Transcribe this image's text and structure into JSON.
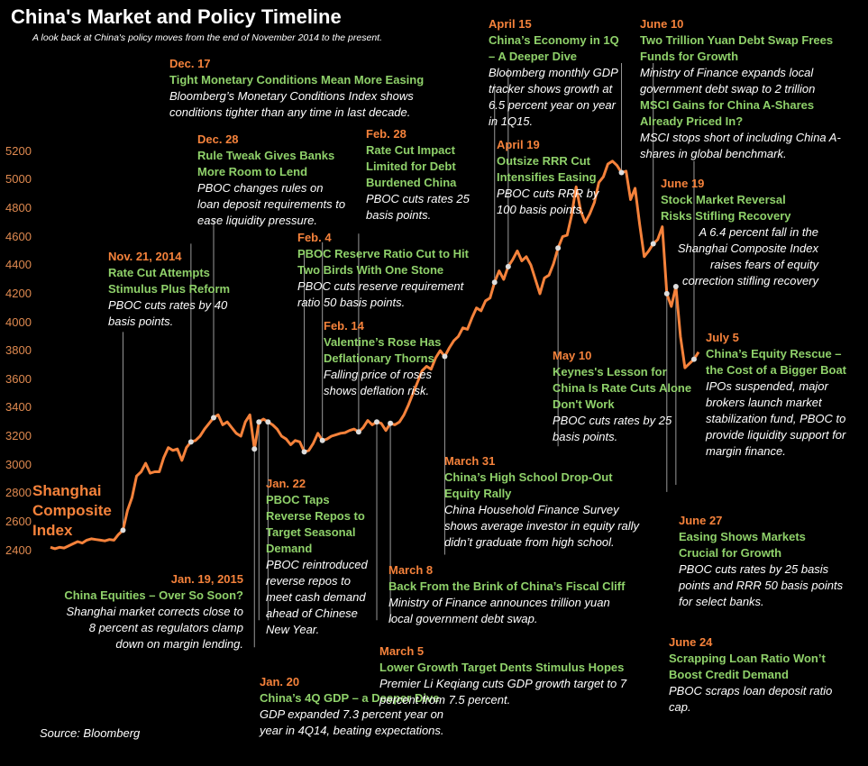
{
  "title": "China's Market and Policy Timeline",
  "subtitle": "A look back at China's policy moves from the end of November 2014 to the present.",
  "source": "Source: Bloomberg",
  "colors": {
    "line": "#f5823b",
    "date": "#f5823b",
    "headline": "#8fd16a",
    "text": "#ffffff",
    "background": "#000000",
    "leader": "#999999"
  },
  "chart_data": {
    "type": "line",
    "series": [
      {
        "name": "Shanghai Composite Index",
        "values": [
          2420,
          2410,
          2420,
          2415,
          2430,
          2445,
          2460,
          2450,
          2470,
          2480,
          2475,
          2470,
          2465,
          2475,
          2470,
          2510,
          2540,
          2680,
          2770,
          2920,
          2950,
          3010,
          2940,
          2950,
          2950,
          3050,
          3120,
          3100,
          3110,
          3030,
          3120,
          3160,
          3170,
          3200,
          3250,
          3290,
          3330,
          3350,
          3280,
          3300,
          3260,
          3220,
          3200,
          3300,
          3350,
          3110,
          3300,
          3320,
          3300,
          3280,
          3250,
          3200,
          3180,
          3140,
          3170,
          3160,
          3090,
          3100,
          3150,
          3220,
          3170,
          3180,
          3200,
          3210,
          3220,
          3225,
          3240,
          3250,
          3230,
          3260,
          3310,
          3280,
          3300,
          3290,
          3240,
          3290,
          3280,
          3300,
          3350,
          3420,
          3500,
          3580,
          3660,
          3690,
          3670,
          3750,
          3800,
          3760,
          3820,
          3870,
          3900,
          3960,
          3950,
          4030,
          4100,
          4080,
          4150,
          4170,
          4280,
          4360,
          4300,
          4390,
          4440,
          4500,
          4430,
          4460,
          4400,
          4300,
          4200,
          4310,
          4330,
          4410,
          4520,
          4600,
          4610,
          4750,
          4950,
          4780,
          4700,
          4760,
          4840,
          4980,
          5020,
          5110,
          5130,
          5100,
          5050,
          5060,
          4860,
          4940,
          4690,
          4460,
          4500,
          4550,
          4580,
          4670,
          4200,
          4110,
          4250,
          3900,
          3680,
          3710,
          3740,
          3790
        ]
      }
    ],
    "ylim": [
      2340,
      5230
    ],
    "yticks": [
      2400,
      2600,
      2800,
      3000,
      3200,
      3400,
      3600,
      3800,
      4000,
      4200,
      4400,
      4600,
      4800,
      5000,
      5200
    ],
    "grid": false,
    "legend": "none",
    "markers": [
      {
        "date": "Nov. 21, 2014",
        "index": 16,
        "anchor": "top"
      },
      {
        "date": "Dec. 17",
        "index": 31,
        "anchor": "top"
      },
      {
        "date": "Dec. 28",
        "index": 36,
        "anchor": "top"
      },
      {
        "date": "Jan. 19, 2015",
        "index": 45,
        "anchor": "bottom"
      },
      {
        "date": "Jan. 20",
        "index": 46,
        "anchor": "bottom"
      },
      {
        "date": "Jan. 22",
        "index": 48,
        "anchor": "bottom"
      },
      {
        "date": "Feb. 4",
        "index": 56,
        "anchor": "top"
      },
      {
        "date": "Feb. 14",
        "index": 60,
        "anchor": "top"
      },
      {
        "date": "Feb. 28",
        "index": 68,
        "anchor": "top"
      },
      {
        "date": "March 5",
        "index": 72,
        "anchor": "bottom"
      },
      {
        "date": "March 8",
        "index": 75,
        "anchor": "bottom"
      },
      {
        "date": "March 31",
        "index": 87,
        "anchor": "bottom"
      },
      {
        "date": "April 15",
        "index": 98,
        "anchor": "top"
      },
      {
        "date": "April 19",
        "index": 101,
        "anchor": "top"
      },
      {
        "date": "May 10",
        "index": 112,
        "anchor": "bottom"
      },
      {
        "date": "June 10",
        "index": 126,
        "anchor": "top"
      },
      {
        "date": "June 19",
        "index": 133,
        "anchor": "top"
      },
      {
        "date": "June 24",
        "index": 136,
        "anchor": "bottom"
      },
      {
        "date": "June 27",
        "index": 138,
        "anchor": "bottom"
      },
      {
        "date": "July 5",
        "index": 142,
        "anchor": "top"
      }
    ]
  },
  "series_label": "Shanghai Composite Index",
  "events": {
    "nov21": {
      "date": "Nov. 21, 2014",
      "headline": "Rate Cut Attempts Stimulus Plus Reform",
      "text": "PBOC cuts rates by 40 basis points."
    },
    "dec17": {
      "date": "Dec. 17",
      "headline": "Tight Monetary Conditions Mean More Easing",
      "text": "Bloomberg’s Monetary Conditions Index shows conditions tighter than any time in last decade."
    },
    "dec28": {
      "date": "Dec. 28",
      "headline": "Rule Tweak Gives Banks More Room to Lend",
      "text": "PBOC changes rules on loan deposit requirements to ease liquidity pressure."
    },
    "jan19": {
      "date": "Jan. 19, 2015",
      "headline": "China Equities – Over So Soon?",
      "text": "Shanghai market corrects close to 8 percent as regulators clamp down on margin lending."
    },
    "jan20": {
      "date": "Jan. 20",
      "headline": "China’s 4Q GDP – a Deeper Dive",
      "text": "GDP expanded 7.3 percent year on year in 4Q14, beating expectations."
    },
    "jan22": {
      "date": "Jan. 22",
      "headline": "PBOC Taps Reverse Repos to Target Seasonal Demand",
      "text": "PBOC reintroduced reverse repos to meet cash demand ahead of Chinese New Year."
    },
    "feb4": {
      "date": "Feb. 4",
      "headline": "PBOC Reserve Ratio Cut to Hit Two Birds With One Stone",
      "text": "PBOC cuts reserve requirement ratio 50 basis points."
    },
    "feb14": {
      "date": "Feb. 14",
      "headline": "Valentine’s Rose Has Deflationary Thorns",
      "text": "Falling price of roses shows deflation risk."
    },
    "feb28": {
      "date": "Feb. 28",
      "headline": "Rate Cut Impact Limited for Debt Burdened China",
      "text": "PBOC cuts rates 25 basis points."
    },
    "mar5": {
      "date": "March 5",
      "headline": "Lower Growth Target Dents Stimulus Hopes",
      "text": "Premier Li Keqiang cuts GDP growth target to 7 percent from 7.5 percent."
    },
    "mar8": {
      "date": "March 8",
      "headline": "Back From the Brink of China’s Fiscal Cliff",
      "text": "Ministry of Finance announces trillion yuan local government debt swap."
    },
    "mar31": {
      "date": "March 31",
      "headline": "China’s High School Drop-Out Equity Rally",
      "text": "China Household Finance Survey shows average investor in equity rally didn’t graduate from high school."
    },
    "apr15": {
      "date": "April 15",
      "headline": "China’s Economy in 1Q – A Deeper Dive",
      "text": "Bloomberg monthly GDP tracker shows growth at 6.5 percent year on year in 1Q15."
    },
    "apr19": {
      "date": "April 19",
      "headline": "Outsize RRR Cut Intensifies Easing",
      "text": "PBOC cuts RRR by 100 basis points."
    },
    "may10": {
      "date": "May 10",
      "headline": "Keynes's Lesson for China Is Rate Cuts Alone Don't Work",
      "text": "PBOC cuts rates by 25 basis points."
    },
    "jun10": {
      "date": "June 10",
      "headline": "Two Trillion Yuan Debt Swap Frees Funds for Growth",
      "text": "Ministry of Finance expands local government debt swap to 2 trillion",
      "headline2": "MSCI Gains for China A-Shares Already Priced In?",
      "text2": "MSCI stops short of including China A-shares in global benchmark."
    },
    "jun19": {
      "date": "June 19",
      "headline": "Stock Market Reversal Risks Stifling Recovery",
      "text": "A 6.4 percent fall in the Shanghai Composite Index raises fears of equity correction stifling recovery"
    },
    "jun24": {
      "date": "June 24",
      "headline": "Scrapping Loan Ratio Won’t Boost Credit Demand",
      "text": "PBOC scraps loan deposit ratio cap."
    },
    "jun27": {
      "date": "June 27",
      "headline": "Easing Shows Markets Crucial for Growth",
      "text": "PBOC cuts rates by 25 basis points and RRR 50 basis points for select banks."
    },
    "jul5": {
      "date": "July 5",
      "headline": "China’s Equity Rescue – the Cost of a Bigger Boat",
      "text": "IPOs suspended, major brokers launch market stabilization fund, PBOC to provide liquidity support for margin finance."
    }
  }
}
